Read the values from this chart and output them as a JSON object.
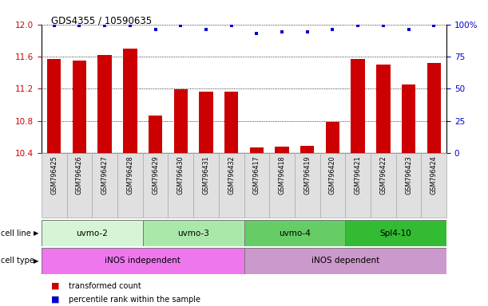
{
  "title": "GDS4355 / 10590635",
  "samples": [
    "GSM796425",
    "GSM796426",
    "GSM796427",
    "GSM796428",
    "GSM796429",
    "GSM796430",
    "GSM796431",
    "GSM796432",
    "GSM796417",
    "GSM796418",
    "GSM796419",
    "GSM796420",
    "GSM796421",
    "GSM796422",
    "GSM796423",
    "GSM796424"
  ],
  "bar_values": [
    11.57,
    11.55,
    11.62,
    11.7,
    10.87,
    11.19,
    11.16,
    11.16,
    10.47,
    10.48,
    10.49,
    10.79,
    11.57,
    11.5,
    11.25,
    11.52
  ],
  "percentile_values": [
    99,
    99,
    99,
    99,
    96,
    99,
    96,
    99,
    93,
    94,
    94,
    96,
    99,
    99,
    96,
    99
  ],
  "bar_color": "#cc0000",
  "percentile_color": "#0000cc",
  "ylim_left": [
    10.4,
    12.0
  ],
  "ylim_right": [
    0,
    100
  ],
  "yticks_left": [
    10.4,
    10.8,
    11.2,
    11.6,
    12.0
  ],
  "yticks_right": [
    0,
    25,
    50,
    75,
    100
  ],
  "cell_lines": [
    {
      "label": "uvmo-2",
      "start": 0,
      "end": 4,
      "color": "#d6f5d6"
    },
    {
      "label": "uvmo-3",
      "start": 4,
      "end": 8,
      "color": "#aae8aa"
    },
    {
      "label": "uvmo-4",
      "start": 8,
      "end": 12,
      "color": "#66cc66"
    },
    {
      "label": "Spl4-10",
      "start": 12,
      "end": 16,
      "color": "#33bb33"
    }
  ],
  "cell_types": [
    {
      "label": "iNOS independent",
      "start": 0,
      "end": 8,
      "color": "#ee77ee"
    },
    {
      "label": "iNOS dependent",
      "start": 8,
      "end": 16,
      "color": "#cc99cc"
    }
  ],
  "cell_line_row_label": "cell line",
  "cell_type_row_label": "cell type",
  "legend_red_label": "transformed count",
  "legend_blue_label": "percentile rank within the sample",
  "bar_width": 0.55,
  "background_color": "#ffffff"
}
